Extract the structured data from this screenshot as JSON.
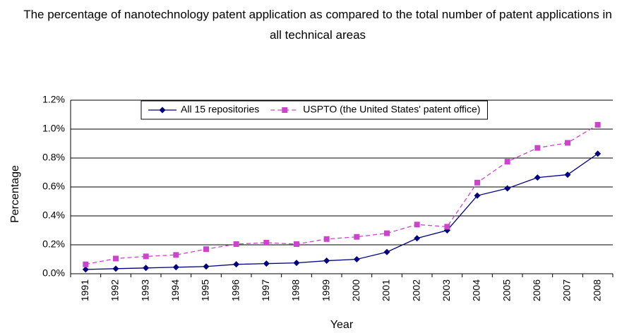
{
  "chart_data": {
    "type": "line",
    "title": "The percentage of nanotechnology patent application as compared to the total number of patent applications in all technical areas",
    "x_label": "Year",
    "y_label": "Percentage",
    "categories": [
      "1991",
      "1992",
      "1993",
      "1994",
      "1995",
      "1996",
      "1997",
      "1998",
      "1999",
      "2000",
      "2001",
      "2002",
      "2003",
      "2004",
      "2005",
      "2006",
      "2007",
      "2008"
    ],
    "series": [
      {
        "name": "All 15 repositories",
        "color": "#000080",
        "marker": "diamond",
        "dash": false,
        "values": [
          0.03,
          0.035,
          0.04,
          0.045,
          0.05,
          0.065,
          0.07,
          0.075,
          0.09,
          0.1,
          0.15,
          0.245,
          0.3,
          0.54,
          0.59,
          0.665,
          0.685,
          0.83
        ]
      },
      {
        "name": "USPTO (the United States' patent office)",
        "color": "#cc44cc",
        "marker": "square",
        "dash": true,
        "values": [
          0.065,
          0.105,
          0.12,
          0.13,
          0.17,
          0.205,
          0.215,
          0.205,
          0.24,
          0.255,
          0.28,
          0.34,
          0.325,
          0.63,
          0.775,
          0.87,
          0.905,
          1.03
        ]
      }
    ],
    "ylim": [
      0,
      1.2
    ],
    "yticks": [
      {
        "value": 0,
        "label": "0.0%"
      },
      {
        "value": 0.2,
        "label": "0.2%"
      },
      {
        "value": 0.4,
        "label": "0.4%"
      },
      {
        "value": 0.6,
        "label": "0.6%"
      },
      {
        "value": 0.8,
        "label": "0.8%"
      },
      {
        "value": 1.0,
        "label": "1.0%"
      },
      {
        "value": 1.2,
        "label": "1.2%"
      }
    ],
    "grid": true,
    "legend": "top"
  }
}
